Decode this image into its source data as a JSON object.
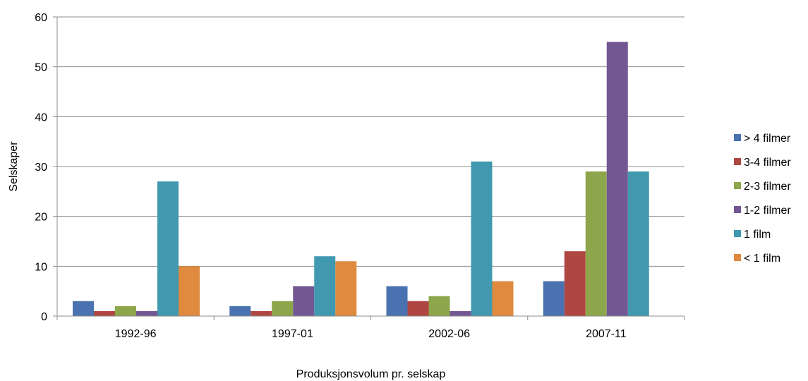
{
  "chart_data": {
    "type": "bar",
    "title": "",
    "xlabel": "Produksjonsvolum pr. selskap",
    "ylabel": "Selskaper",
    "categories": [
      "1992-96",
      "1997-01",
      "2002-06",
      "2007-11"
    ],
    "ylim": [
      0,
      60
    ],
    "yticks": [
      0,
      10,
      20,
      30,
      40,
      50,
      60
    ],
    "grid": true,
    "legend_position": "right",
    "series": [
      {
        "name": "> 4 filmer",
        "color": "#4a72b0",
        "values": [
          3,
          2,
          6,
          7
        ]
      },
      {
        "name": "3-4 filmer",
        "color": "#b04642",
        "values": [
          1,
          1,
          3,
          13
        ]
      },
      {
        "name": "2-3 filmer",
        "color": "#8ea64b",
        "values": [
          2,
          3,
          4,
          29
        ]
      },
      {
        "name": "1-2 filmer",
        "color": "#735792",
        "values": [
          1,
          6,
          1,
          55
        ]
      },
      {
        "name": "1 film",
        "color": "#4199b0",
        "values": [
          27,
          12,
          31,
          29
        ]
      },
      {
        "name": "< 1 film",
        "color": "#df8a3e",
        "values": [
          10,
          11,
          7,
          0
        ]
      }
    ]
  }
}
